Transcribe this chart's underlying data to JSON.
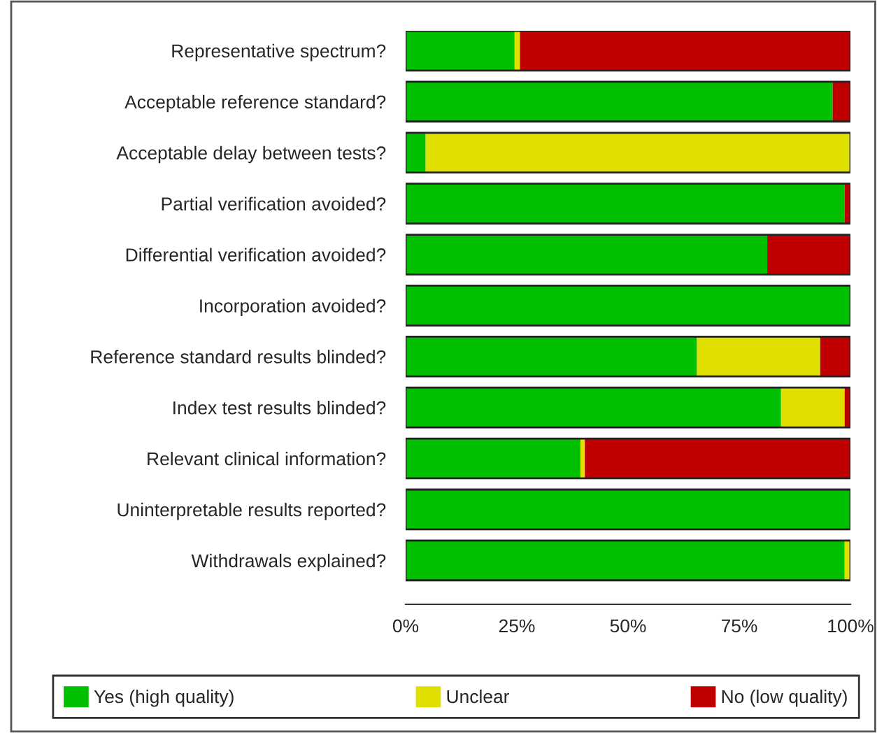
{
  "chart_data": {
    "type": "bar",
    "orientation": "horizontal",
    "stacked": true,
    "categories": [
      "Representative spectrum?",
      "Acceptable reference standard?",
      "Acceptable delay between tests?",
      "Partial verification avoided?",
      "Differential verification avoided?",
      "Incorporation avoided?",
      "Reference standard results blinded?",
      "Index test results blinded?",
      "Relevant clinical information?",
      "Uninterpretable results reported?",
      "Withdrawals explained?"
    ],
    "series": [
      {
        "name": "Yes (high quality)",
        "color": "#00c000",
        "values": [
          24.5,
          96,
          4.5,
          98.7,
          81.3,
          100,
          65.5,
          84.4,
          39.3,
          100,
          98.7
        ]
      },
      {
        "name": "Unclear",
        "color": "#e0e000",
        "values": [
          1.2,
          0,
          95.5,
          0,
          0,
          0,
          27.7,
          14.3,
          1,
          0,
          1.3
        ]
      },
      {
        "name": "No (low quality)",
        "color": "#c00000",
        "values": [
          74.3,
          4,
          0,
          1.3,
          18.7,
          0,
          6.8,
          1.3,
          59.7,
          0,
          0
        ]
      }
    ],
    "xlim": [
      0,
      100
    ],
    "xticks": [
      {
        "value": 0,
        "label": "0%"
      },
      {
        "value": 25,
        "label": "25%"
      },
      {
        "value": 50,
        "label": "50%"
      },
      {
        "value": 75,
        "label": "75%"
      },
      {
        "value": 100,
        "label": "100%"
      }
    ],
    "grid": false,
    "legend": "bottom"
  }
}
